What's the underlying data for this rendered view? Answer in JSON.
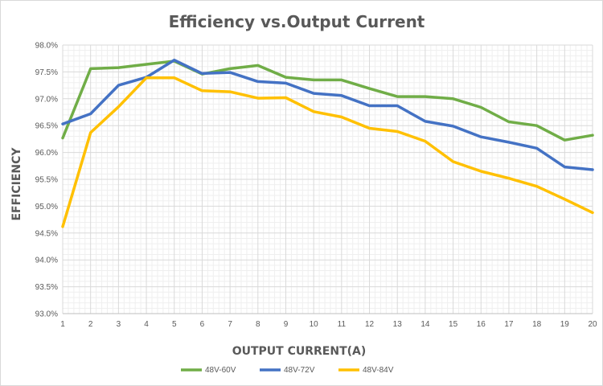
{
  "chart_data": {
    "type": "line",
    "title": "Efficiency vs.Output Current",
    "xlabel": "OUTPUT CURRENT(A)",
    "ylabel": "EFFICIENCY",
    "x": [
      1,
      2,
      3,
      4,
      5,
      6,
      7,
      8,
      9,
      10,
      11,
      12,
      13,
      14,
      15,
      16,
      17,
      18,
      19,
      20
    ],
    "x_tick_labels": [
      "1",
      "2",
      "3",
      "4",
      "5",
      "6",
      "7",
      "8",
      "9",
      "10",
      "11",
      "12",
      "13",
      "14",
      "15",
      "16",
      "17",
      "18",
      "19",
      "20"
    ],
    "y_tick_values": [
      93.0,
      93.5,
      94.0,
      94.5,
      95.0,
      95.5,
      96.0,
      96.5,
      97.0,
      97.5,
      98.0
    ],
    "y_tick_labels": [
      "93.0%",
      "93.5%",
      "94.0%",
      "94.5%",
      "95.0%",
      "95.5%",
      "96.0%",
      "96.5%",
      "97.0%",
      "97.5%",
      "98.0%"
    ],
    "ylim": [
      93.0,
      98.0
    ],
    "xlim": [
      1,
      20
    ],
    "grid": true,
    "legend_position": "bottom",
    "series": [
      {
        "name": "48V-60V",
        "color": "#70ad47",
        "values": [
          96.27,
          97.56,
          97.58,
          97.64,
          97.7,
          97.46,
          97.56,
          97.62,
          97.4,
          97.35,
          97.35,
          97.19,
          97.04,
          97.04,
          97.0,
          96.84,
          96.57,
          96.5,
          96.23,
          96.32
        ]
      },
      {
        "name": "48V-72V",
        "color": "#4472c4",
        "values": [
          96.53,
          96.72,
          97.25,
          97.4,
          97.72,
          97.47,
          97.49,
          97.32,
          97.29,
          97.1,
          97.06,
          96.87,
          96.87,
          96.58,
          96.49,
          96.29,
          96.19,
          96.08,
          95.73,
          95.68
        ]
      },
      {
        "name": "48V-84V",
        "color": "#ffc000",
        "values": [
          94.62,
          96.37,
          96.85,
          97.39,
          97.39,
          97.15,
          97.13,
          97.01,
          97.02,
          96.76,
          96.66,
          96.45,
          96.39,
          96.21,
          95.83,
          95.65,
          95.52,
          95.37,
          95.13,
          94.88
        ]
      }
    ]
  }
}
